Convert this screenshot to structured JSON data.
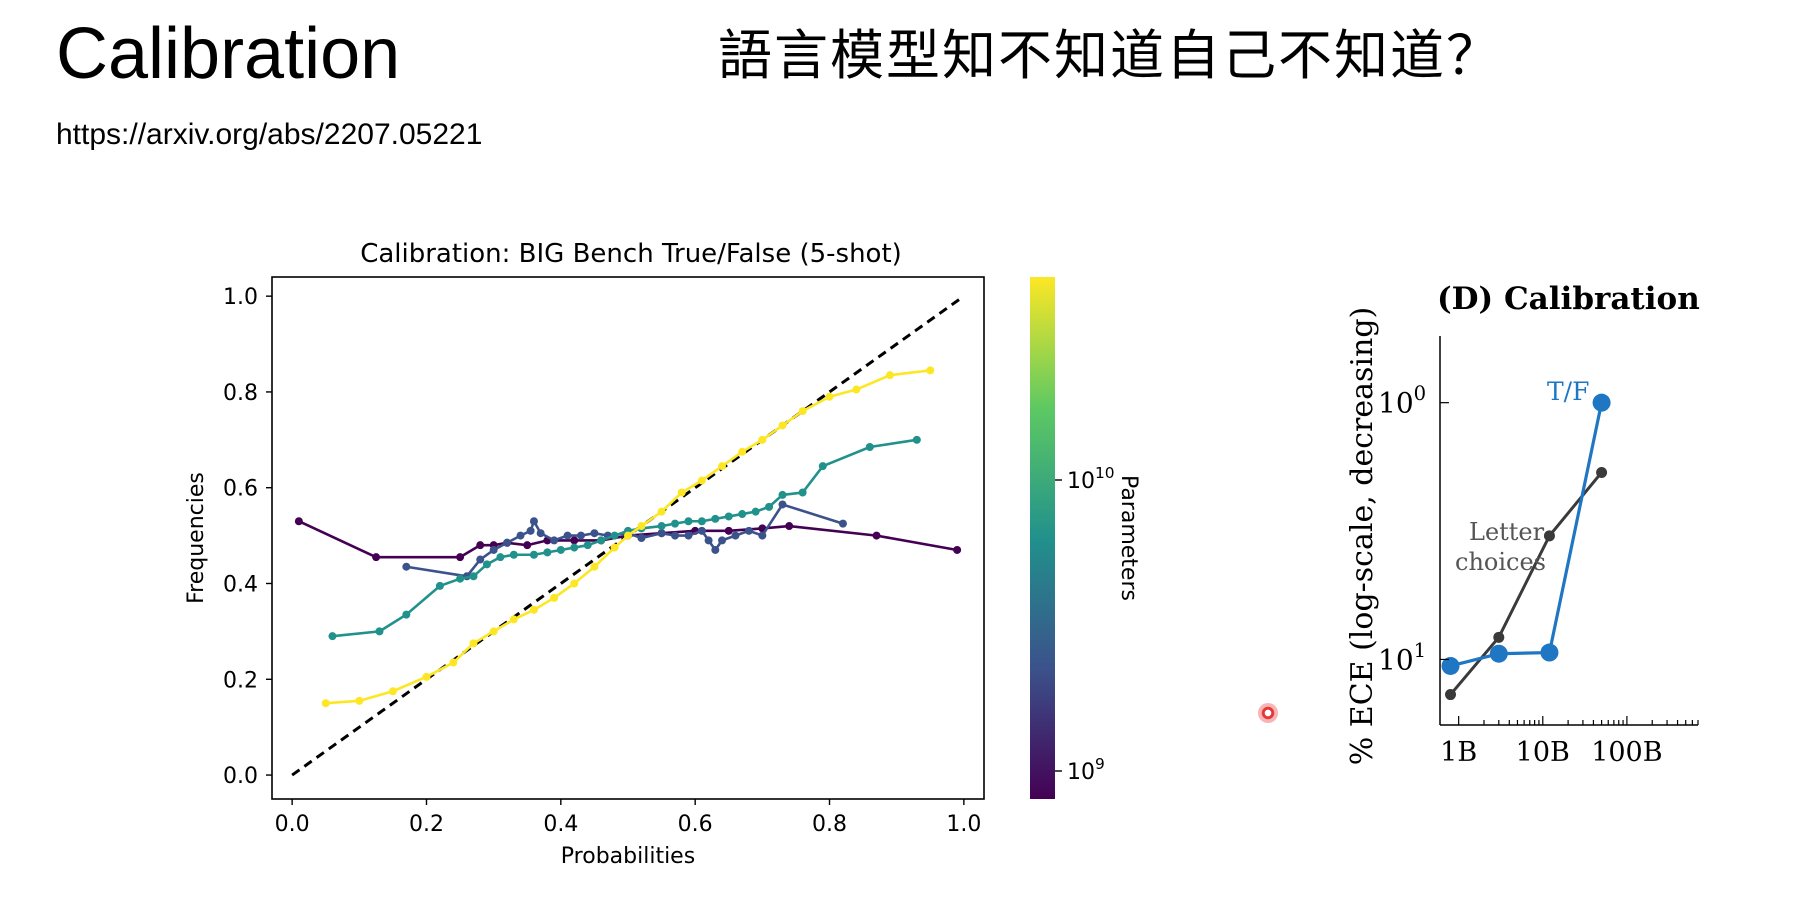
{
  "slide": {
    "title": "Calibration",
    "subtitle": "語言模型知不知道自己不知道？",
    "link": "https://arxiv.org/abs/2207.05221"
  },
  "chart_data": [
    {
      "type": "line",
      "title": "Calibration: BIG Bench True/False (5-shot)",
      "xlabel": "Probabilities",
      "ylabel": "Frequencies",
      "xlim": [
        -0.03,
        1.03
      ],
      "ylim": [
        -0.05,
        1.04
      ],
      "xticks": [
        "0.0",
        "0.2",
        "0.4",
        "0.6",
        "0.8",
        "1.0"
      ],
      "yticks": [
        "0.0",
        "0.2",
        "0.4",
        "0.6",
        "0.8",
        "1.0"
      ],
      "grid": false,
      "legend": "none",
      "reference_line": {
        "label": "perfect calibration",
        "x": [
          0,
          1
        ],
        "y": [
          0,
          1
        ],
        "color": "#000000",
        "style": "dashed"
      },
      "colorbar": {
        "label": "Parameters",
        "scale": "log",
        "ticks": [
          "10^9",
          "10^10"
        ],
        "colors": [
          "#440154",
          "#3b528b",
          "#21918c",
          "#5ec962",
          "#fde725"
        ]
      },
      "series": [
        {
          "color": "#440154",
          "x": [
            0.01,
            0.125,
            0.25,
            0.28,
            0.3,
            0.32,
            0.35,
            0.38,
            0.42,
            0.46,
            0.5,
            0.55,
            0.6,
            0.65,
            0.7,
            0.74,
            0.87,
            0.99
          ],
          "y": [
            0.53,
            0.455,
            0.455,
            0.48,
            0.48,
            0.485,
            0.48,
            0.49,
            0.49,
            0.49,
            0.5,
            0.505,
            0.51,
            0.51,
            0.515,
            0.52,
            0.5,
            0.47
          ]
        },
        {
          "color": "#3b528b",
          "x": [
            0.17,
            0.26,
            0.28,
            0.3,
            0.32,
            0.34,
            0.355,
            0.36,
            0.37,
            0.39,
            0.41,
            0.43,
            0.45,
            0.47,
            0.5,
            0.52,
            0.55,
            0.57,
            0.59,
            0.61,
            0.62,
            0.63,
            0.64,
            0.66,
            0.68,
            0.7,
            0.73,
            0.82
          ],
          "y": [
            0.435,
            0.415,
            0.45,
            0.47,
            0.485,
            0.5,
            0.51,
            0.53,
            0.505,
            0.49,
            0.5,
            0.5,
            0.505,
            0.5,
            0.505,
            0.495,
            0.505,
            0.5,
            0.5,
            0.51,
            0.49,
            0.47,
            0.49,
            0.5,
            0.51,
            0.5,
            0.565,
            0.525
          ]
        },
        {
          "color": "#21918c",
          "x": [
            0.06,
            0.13,
            0.17,
            0.22,
            0.25,
            0.27,
            0.29,
            0.31,
            0.33,
            0.36,
            0.38,
            0.4,
            0.42,
            0.44,
            0.46,
            0.48,
            0.5,
            0.52,
            0.55,
            0.57,
            0.59,
            0.61,
            0.63,
            0.65,
            0.67,
            0.69,
            0.71,
            0.73,
            0.76,
            0.79,
            0.86,
            0.93
          ],
          "y": [
            0.29,
            0.3,
            0.335,
            0.395,
            0.41,
            0.415,
            0.44,
            0.455,
            0.46,
            0.46,
            0.465,
            0.47,
            0.475,
            0.48,
            0.49,
            0.5,
            0.51,
            0.515,
            0.52,
            0.525,
            0.53,
            0.53,
            0.535,
            0.54,
            0.545,
            0.55,
            0.56,
            0.585,
            0.59,
            0.645,
            0.685,
            0.7
          ]
        },
        {
          "color": "#fde725",
          "x": [
            0.05,
            0.1,
            0.15,
            0.2,
            0.24,
            0.27,
            0.3,
            0.33,
            0.36,
            0.39,
            0.42,
            0.45,
            0.48,
            0.5,
            0.52,
            0.55,
            0.58,
            0.61,
            0.64,
            0.67,
            0.7,
            0.73,
            0.76,
            0.8,
            0.84,
            0.89,
            0.95
          ],
          "y": [
            0.15,
            0.155,
            0.175,
            0.205,
            0.235,
            0.275,
            0.3,
            0.325,
            0.345,
            0.37,
            0.4,
            0.435,
            0.475,
            0.5,
            0.52,
            0.55,
            0.59,
            0.615,
            0.645,
            0.675,
            0.7,
            0.73,
            0.76,
            0.79,
            0.805,
            0.835,
            0.845
          ]
        }
      ]
    },
    {
      "type": "line",
      "title": "(D) Calibration",
      "xlabel": "",
      "ylabel": "% ECE (log-scale, decreasing)",
      "x_scale": "log",
      "y_scale": "log, decreasing",
      "xlim": [
        600000000.0,
        700000000000.0
      ],
      "ylim": [
        18,
        0.55
      ],
      "xticks": [
        "1B",
        "10B",
        "100B"
      ],
      "yticks": [
        {
          "label": "10^0",
          "value": 1
        },
        {
          "label": "10^1",
          "value": 10
        }
      ],
      "grid": false,
      "legend": "none",
      "series": [
        {
          "name": "T/F",
          "color": "#1f77c4",
          "x": [
            800000000.0,
            3000000000.0,
            12000000000.0,
            50000000000.0
          ],
          "y": [
            10.6,
            9.5,
            9.4,
            1.0
          ]
        },
        {
          "name": "Letter choices",
          "color": "#3a3a3a",
          "x": [
            800000000.0,
            3000000000.0,
            12000000000.0,
            50000000000.0
          ],
          "y": [
            13.7,
            8.2,
            3.3,
            1.87
          ]
        }
      ]
    }
  ]
}
